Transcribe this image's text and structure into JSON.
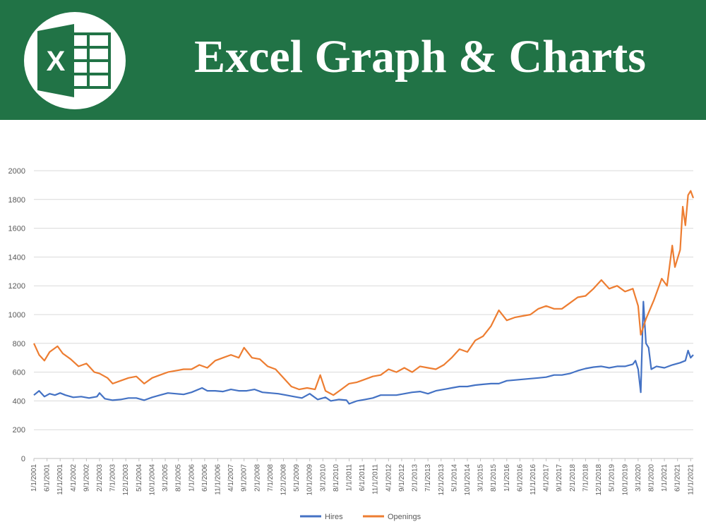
{
  "banner": {
    "title": "Excel Graph & Charts",
    "logo_icon": "excel-logo-icon",
    "logo_letter": "X",
    "background": "#217346"
  },
  "chart_data": {
    "type": "line",
    "ylim": [
      0,
      2000
    ],
    "y_ticks": [
      0,
      200,
      400,
      600,
      800,
      1000,
      1200,
      1400,
      1600,
      1800,
      2000
    ],
    "grid": true,
    "legend": "bottom",
    "x_start": "2001-01",
    "x_end": "2021-12",
    "x_tick_labels": [
      "1/1/2001",
      "6/1/2001",
      "11/1/2001",
      "4/1/2002",
      "9/1/2002",
      "2/1/2003",
      "7/1/2003",
      "12/1/2003",
      "5/1/2004",
      "10/1/2004",
      "3/1/2005",
      "8/1/2005",
      "1/1/2006",
      "6/1/2006",
      "11/1/2006",
      "4/1/2007",
      "9/1/2007",
      "2/1/2008",
      "7/1/2008",
      "12/1/2008",
      "5/1/2009",
      "10/1/2009",
      "3/1/2010",
      "8/1/2010",
      "1/1/2011",
      "6/1/2011",
      "11/1/2011",
      "4/1/2012",
      "9/1/2012",
      "2/1/2013",
      "7/1/2013",
      "12/1/2013",
      "5/1/2014",
      "10/1/2014",
      "3/1/2015",
      "8/1/2015",
      "1/1/2016",
      "6/1/2016",
      "11/1/2016",
      "4/1/2017",
      "9/1/2017",
      "2/1/2018",
      "7/1/2018",
      "12/1/2018",
      "5/1/2019",
      "10/1/2019",
      "3/1/2020",
      "8/1/2020",
      "1/1/2021",
      "6/1/2021",
      "11/1/2021"
    ],
    "series": [
      {
        "name": "Hires",
        "color": "#4472C4",
        "points": [
          [
            "2001-01",
            440
          ],
          [
            "2001-03",
            470
          ],
          [
            "2001-05",
            430
          ],
          [
            "2001-07",
            450
          ],
          [
            "2001-09",
            440
          ],
          [
            "2001-11",
            455
          ],
          [
            "2002-01",
            440
          ],
          [
            "2002-04",
            425
          ],
          [
            "2002-07",
            430
          ],
          [
            "2002-10",
            420
          ],
          [
            "2003-01",
            430
          ],
          [
            "2003-02",
            455
          ],
          [
            "2003-04",
            415
          ],
          [
            "2003-07",
            405
          ],
          [
            "2003-10",
            410
          ],
          [
            "2004-01",
            420
          ],
          [
            "2004-04",
            420
          ],
          [
            "2004-07",
            405
          ],
          [
            "2004-10",
            425
          ],
          [
            "2005-01",
            440
          ],
          [
            "2005-04",
            455
          ],
          [
            "2005-07",
            450
          ],
          [
            "2005-10",
            445
          ],
          [
            "2006-01",
            460
          ],
          [
            "2006-05",
            490
          ],
          [
            "2006-07",
            470
          ],
          [
            "2006-10",
            470
          ],
          [
            "2007-01",
            465
          ],
          [
            "2007-04",
            480
          ],
          [
            "2007-07",
            470
          ],
          [
            "2007-10",
            470
          ],
          [
            "2008-01",
            480
          ],
          [
            "2008-04",
            460
          ],
          [
            "2008-07",
            455
          ],
          [
            "2008-10",
            450
          ],
          [
            "2009-01",
            440
          ],
          [
            "2009-04",
            430
          ],
          [
            "2009-07",
            420
          ],
          [
            "2009-10",
            450
          ],
          [
            "2010-01",
            410
          ],
          [
            "2010-04",
            425
          ],
          [
            "2010-06",
            400
          ],
          [
            "2010-09",
            410
          ],
          [
            "2010-12",
            405
          ],
          [
            "2011-01",
            380
          ],
          [
            "2011-04",
            400
          ],
          [
            "2011-07",
            410
          ],
          [
            "2011-10",
            420
          ],
          [
            "2012-01",
            440
          ],
          [
            "2012-04",
            440
          ],
          [
            "2012-07",
            440
          ],
          [
            "2012-10",
            450
          ],
          [
            "2013-01",
            460
          ],
          [
            "2013-04",
            465
          ],
          [
            "2013-07",
            450
          ],
          [
            "2013-10",
            470
          ],
          [
            "2014-01",
            480
          ],
          [
            "2014-04",
            490
          ],
          [
            "2014-07",
            500
          ],
          [
            "2014-10",
            500
          ],
          [
            "2015-01",
            510
          ],
          [
            "2015-04",
            515
          ],
          [
            "2015-07",
            520
          ],
          [
            "2015-10",
            520
          ],
          [
            "2016-01",
            540
          ],
          [
            "2016-04",
            545
          ],
          [
            "2016-07",
            550
          ],
          [
            "2016-10",
            555
          ],
          [
            "2017-01",
            560
          ],
          [
            "2017-04",
            565
          ],
          [
            "2017-07",
            580
          ],
          [
            "2017-10",
            580
          ],
          [
            "2018-01",
            590
          ],
          [
            "2018-04",
            610
          ],
          [
            "2018-07",
            625
          ],
          [
            "2018-10",
            635
          ],
          [
            "2019-01",
            640
          ],
          [
            "2019-04",
            630
          ],
          [
            "2019-07",
            640
          ],
          [
            "2019-10",
            640
          ],
          [
            "2020-01",
            655
          ],
          [
            "2020-02",
            680
          ],
          [
            "2020-03",
            620
          ],
          [
            "2020-04",
            460
          ],
          [
            "2020-05",
            1090
          ],
          [
            "2020-06",
            800
          ],
          [
            "2020-07",
            770
          ],
          [
            "2020-08",
            620
          ],
          [
            "2020-10",
            640
          ],
          [
            "2021-01",
            630
          ],
          [
            "2021-04",
            650
          ],
          [
            "2021-07",
            665
          ],
          [
            "2021-09",
            680
          ],
          [
            "2021-10",
            750
          ],
          [
            "2021-11",
            700
          ],
          [
            "2021-12",
            720
          ]
        ]
      },
      {
        "name": "Openings",
        "color": "#ED7D31",
        "points": [
          [
            "2001-01",
            800
          ],
          [
            "2001-03",
            720
          ],
          [
            "2001-05",
            680
          ],
          [
            "2001-07",
            740
          ],
          [
            "2001-10",
            780
          ],
          [
            "2001-12",
            730
          ],
          [
            "2002-03",
            690
          ],
          [
            "2002-06",
            640
          ],
          [
            "2002-09",
            660
          ],
          [
            "2002-12",
            600
          ],
          [
            "2003-02",
            590
          ],
          [
            "2003-05",
            560
          ],
          [
            "2003-07",
            520
          ],
          [
            "2003-10",
            540
          ],
          [
            "2004-01",
            560
          ],
          [
            "2004-04",
            570
          ],
          [
            "2004-07",
            520
          ],
          [
            "2004-10",
            560
          ],
          [
            "2005-01",
            580
          ],
          [
            "2005-04",
            600
          ],
          [
            "2005-07",
            610
          ],
          [
            "2005-10",
            620
          ],
          [
            "2006-01",
            620
          ],
          [
            "2006-04",
            650
          ],
          [
            "2006-07",
            630
          ],
          [
            "2006-10",
            680
          ],
          [
            "2007-01",
            700
          ],
          [
            "2007-04",
            720
          ],
          [
            "2007-07",
            700
          ],
          [
            "2007-09",
            770
          ],
          [
            "2007-12",
            700
          ],
          [
            "2008-03",
            690
          ],
          [
            "2008-06",
            640
          ],
          [
            "2008-09",
            620
          ],
          [
            "2008-12",
            560
          ],
          [
            "2009-03",
            500
          ],
          [
            "2009-06",
            480
          ],
          [
            "2009-09",
            490
          ],
          [
            "2009-12",
            480
          ],
          [
            "2010-02",
            580
          ],
          [
            "2010-04",
            470
          ],
          [
            "2010-07",
            440
          ],
          [
            "2010-10",
            480
          ],
          [
            "2011-01",
            520
          ],
          [
            "2011-04",
            530
          ],
          [
            "2011-07",
            550
          ],
          [
            "2011-10",
            570
          ],
          [
            "2012-01",
            580
          ],
          [
            "2012-04",
            620
          ],
          [
            "2012-07",
            600
          ],
          [
            "2012-10",
            630
          ],
          [
            "2013-01",
            600
          ],
          [
            "2013-04",
            640
          ],
          [
            "2013-07",
            630
          ],
          [
            "2013-10",
            620
          ],
          [
            "2014-01",
            650
          ],
          [
            "2014-04",
            700
          ],
          [
            "2014-07",
            760
          ],
          [
            "2014-10",
            740
          ],
          [
            "2015-01",
            820
          ],
          [
            "2015-04",
            850
          ],
          [
            "2015-07",
            920
          ],
          [
            "2015-10",
            1030
          ],
          [
            "2016-01",
            960
          ],
          [
            "2016-04",
            980
          ],
          [
            "2016-07",
            990
          ],
          [
            "2016-10",
            1000
          ],
          [
            "2017-01",
            1040
          ],
          [
            "2017-04",
            1060
          ],
          [
            "2017-07",
            1040
          ],
          [
            "2017-10",
            1040
          ],
          [
            "2018-01",
            1080
          ],
          [
            "2018-04",
            1120
          ],
          [
            "2018-07",
            1130
          ],
          [
            "2018-10",
            1180
          ],
          [
            "2019-01",
            1240
          ],
          [
            "2019-04",
            1180
          ],
          [
            "2019-07",
            1200
          ],
          [
            "2019-10",
            1160
          ],
          [
            "2020-01",
            1180
          ],
          [
            "2020-03",
            1060
          ],
          [
            "2020-04",
            860
          ],
          [
            "2020-06",
            970
          ],
          [
            "2020-09",
            1100
          ],
          [
            "2020-12",
            1250
          ],
          [
            "2021-02",
            1200
          ],
          [
            "2021-04",
            1480
          ],
          [
            "2021-05",
            1330
          ],
          [
            "2021-07",
            1450
          ],
          [
            "2021-08",
            1750
          ],
          [
            "2021-09",
            1620
          ],
          [
            "2021-10",
            1830
          ],
          [
            "2021-11",
            1860
          ],
          [
            "2021-12",
            1810
          ]
        ]
      }
    ]
  }
}
